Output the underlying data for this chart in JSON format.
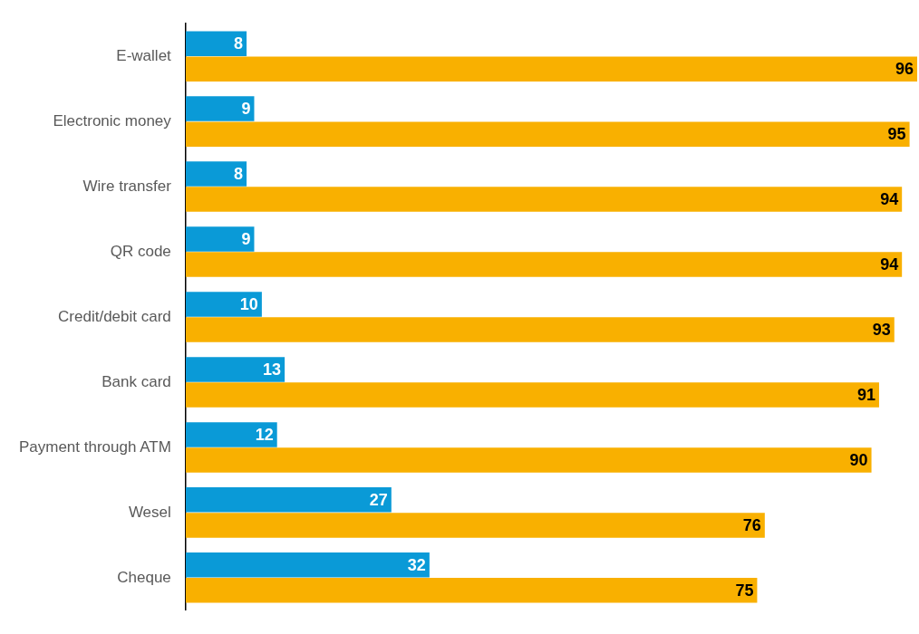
{
  "chart_data": {
    "type": "bar",
    "orientation": "horizontal",
    "categories": [
      "E-wallet",
      "Electronic money",
      "Wire transfer",
      "QR code",
      "Credit/debit card",
      "Bank card",
      "Payment through ATM",
      "Wesel",
      "Cheque"
    ],
    "series": [
      {
        "color": "#0a9ad7",
        "values": [
          8,
          9,
          8,
          9,
          10,
          13,
          12,
          27,
          32
        ]
      },
      {
        "color": "#f9b000",
        "values": [
          96,
          95,
          94,
          94,
          93,
          91,
          90,
          76,
          75
        ]
      }
    ],
    "xlim": [
      0,
      96
    ],
    "data_labels": true
  }
}
